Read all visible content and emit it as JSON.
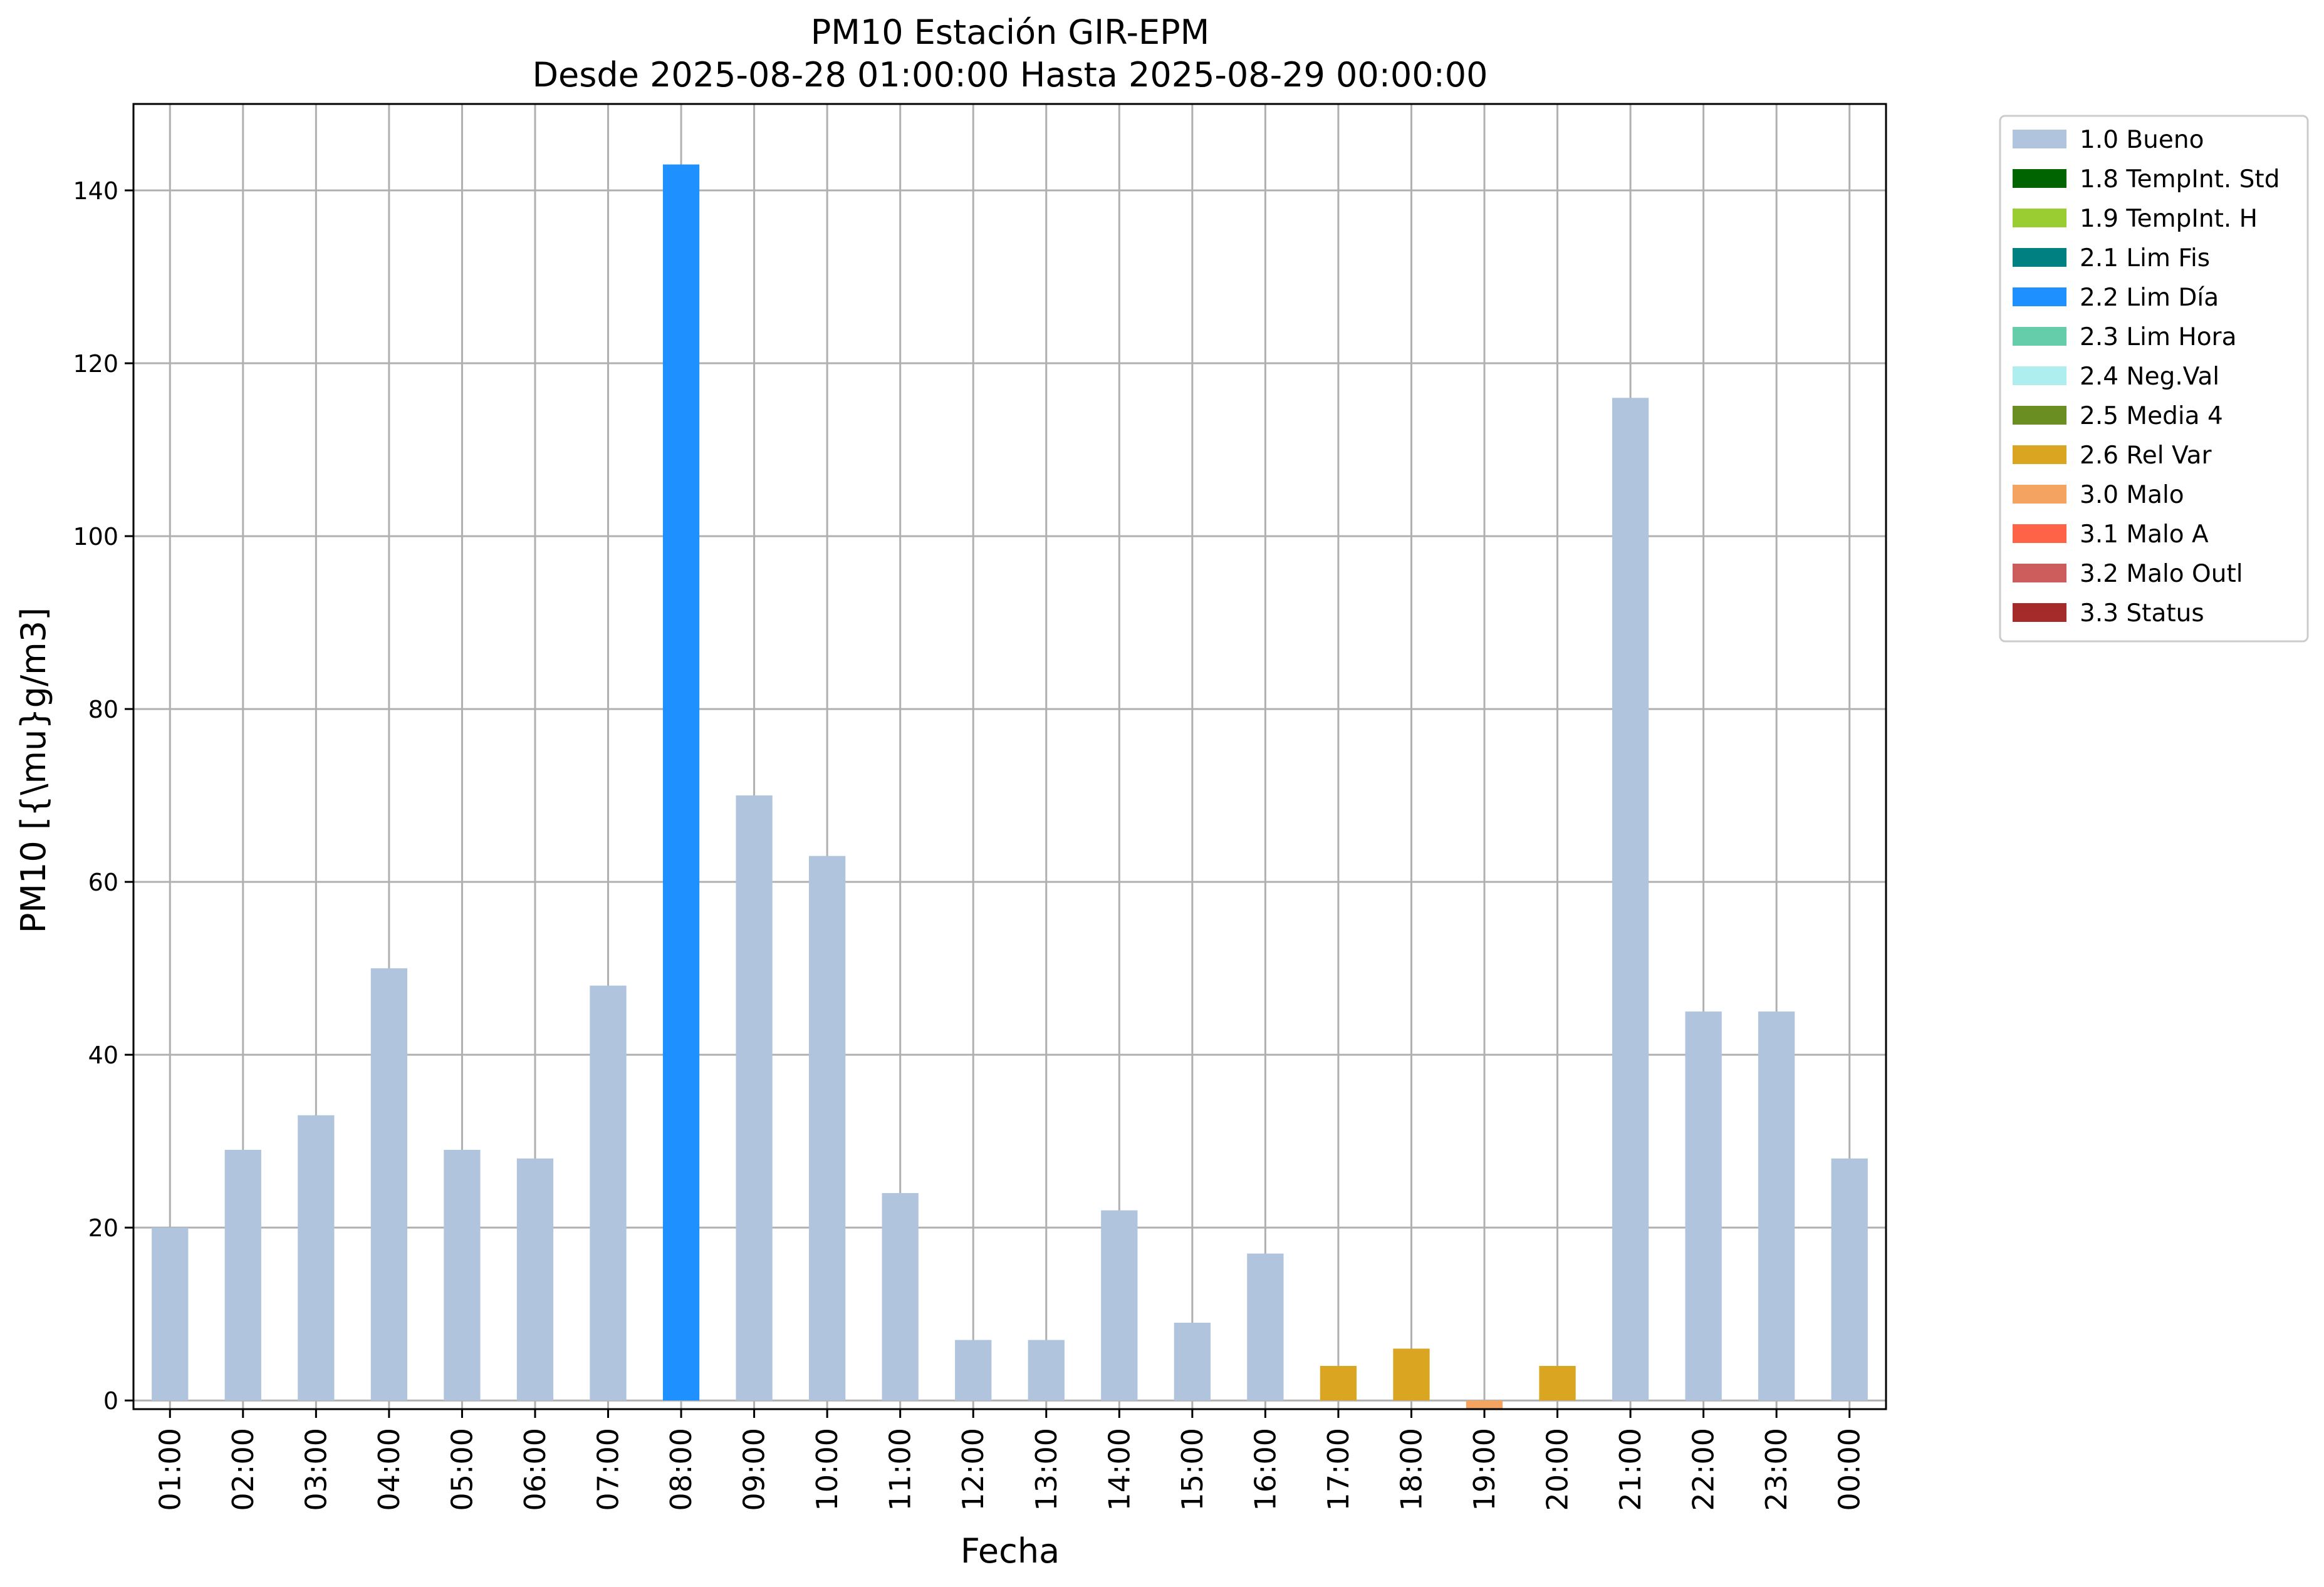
{
  "chart_data": {
    "type": "bar",
    "title": "PM10 Estación GIR-EPM",
    "subtitle": "Desde 2025-08-28 01:00:00 Hasta 2025-08-29 00:00:00",
    "xlabel": "Fecha",
    "ylabel": "PM10 [{\\mu}g/m3]",
    "ylim": [
      -1,
      150
    ],
    "yticks": [
      0,
      20,
      40,
      60,
      80,
      100,
      120,
      140
    ],
    "grid": true,
    "legend_position": "outside-right-top",
    "categories": [
      "01:00",
      "02:00",
      "03:00",
      "04:00",
      "05:00",
      "06:00",
      "07:00",
      "08:00",
      "09:00",
      "10:00",
      "11:00",
      "12:00",
      "13:00",
      "14:00",
      "15:00",
      "16:00",
      "17:00",
      "18:00",
      "19:00",
      "20:00",
      "21:00",
      "22:00",
      "23:00",
      "00:00"
    ],
    "values": [
      20,
      29,
      33,
      50,
      29,
      28,
      48,
      143,
      70,
      63,
      24,
      7,
      7,
      22,
      9,
      17,
      4,
      6,
      -1,
      4,
      116,
      45,
      45,
      28
    ],
    "flags": [
      "1.0 Bueno",
      "1.0 Bueno",
      "1.0 Bueno",
      "1.0 Bueno",
      "1.0 Bueno",
      "1.0 Bueno",
      "1.0 Bueno",
      "2.2 Lim Día",
      "1.0 Bueno",
      "1.0 Bueno",
      "1.0 Bueno",
      "1.0 Bueno",
      "1.0 Bueno",
      "1.0 Bueno",
      "1.0 Bueno",
      "1.0 Bueno",
      "2.6 Rel Var",
      "2.6 Rel Var",
      "3.0 Malo",
      "2.6 Rel Var",
      "1.0 Bueno",
      "1.0 Bueno",
      "1.0 Bueno",
      "1.0 Bueno"
    ],
    "legend": [
      {
        "label": "1.0 Bueno",
        "color": "#b0c4de"
      },
      {
        "label": "1.8 TempInt. Std",
        "color": "#006400"
      },
      {
        "label": "1.9 TempInt. H",
        "color": "#9acd32"
      },
      {
        "label": "2.1 Lim Fis",
        "color": "#008080"
      },
      {
        "label": "2.2 Lim Día",
        "color": "#1e90ff"
      },
      {
        "label": "2.3 Lim Hora",
        "color": "#66cdaa"
      },
      {
        "label": "2.4 Neg.Val",
        "color": "#afeeee"
      },
      {
        "label": "2.5 Media 4",
        "color": "#6b8e23"
      },
      {
        "label": "2.6 Rel Var",
        "color": "#daa520"
      },
      {
        "label": "3.0 Malo",
        "color": "#f4a460"
      },
      {
        "label": "3.1 Malo A",
        "color": "#ff6347"
      },
      {
        "label": "3.2 Malo Outl",
        "color": "#cd5c5c"
      },
      {
        "label": "3.3 Status",
        "color": "#a52a2a"
      }
    ]
  }
}
